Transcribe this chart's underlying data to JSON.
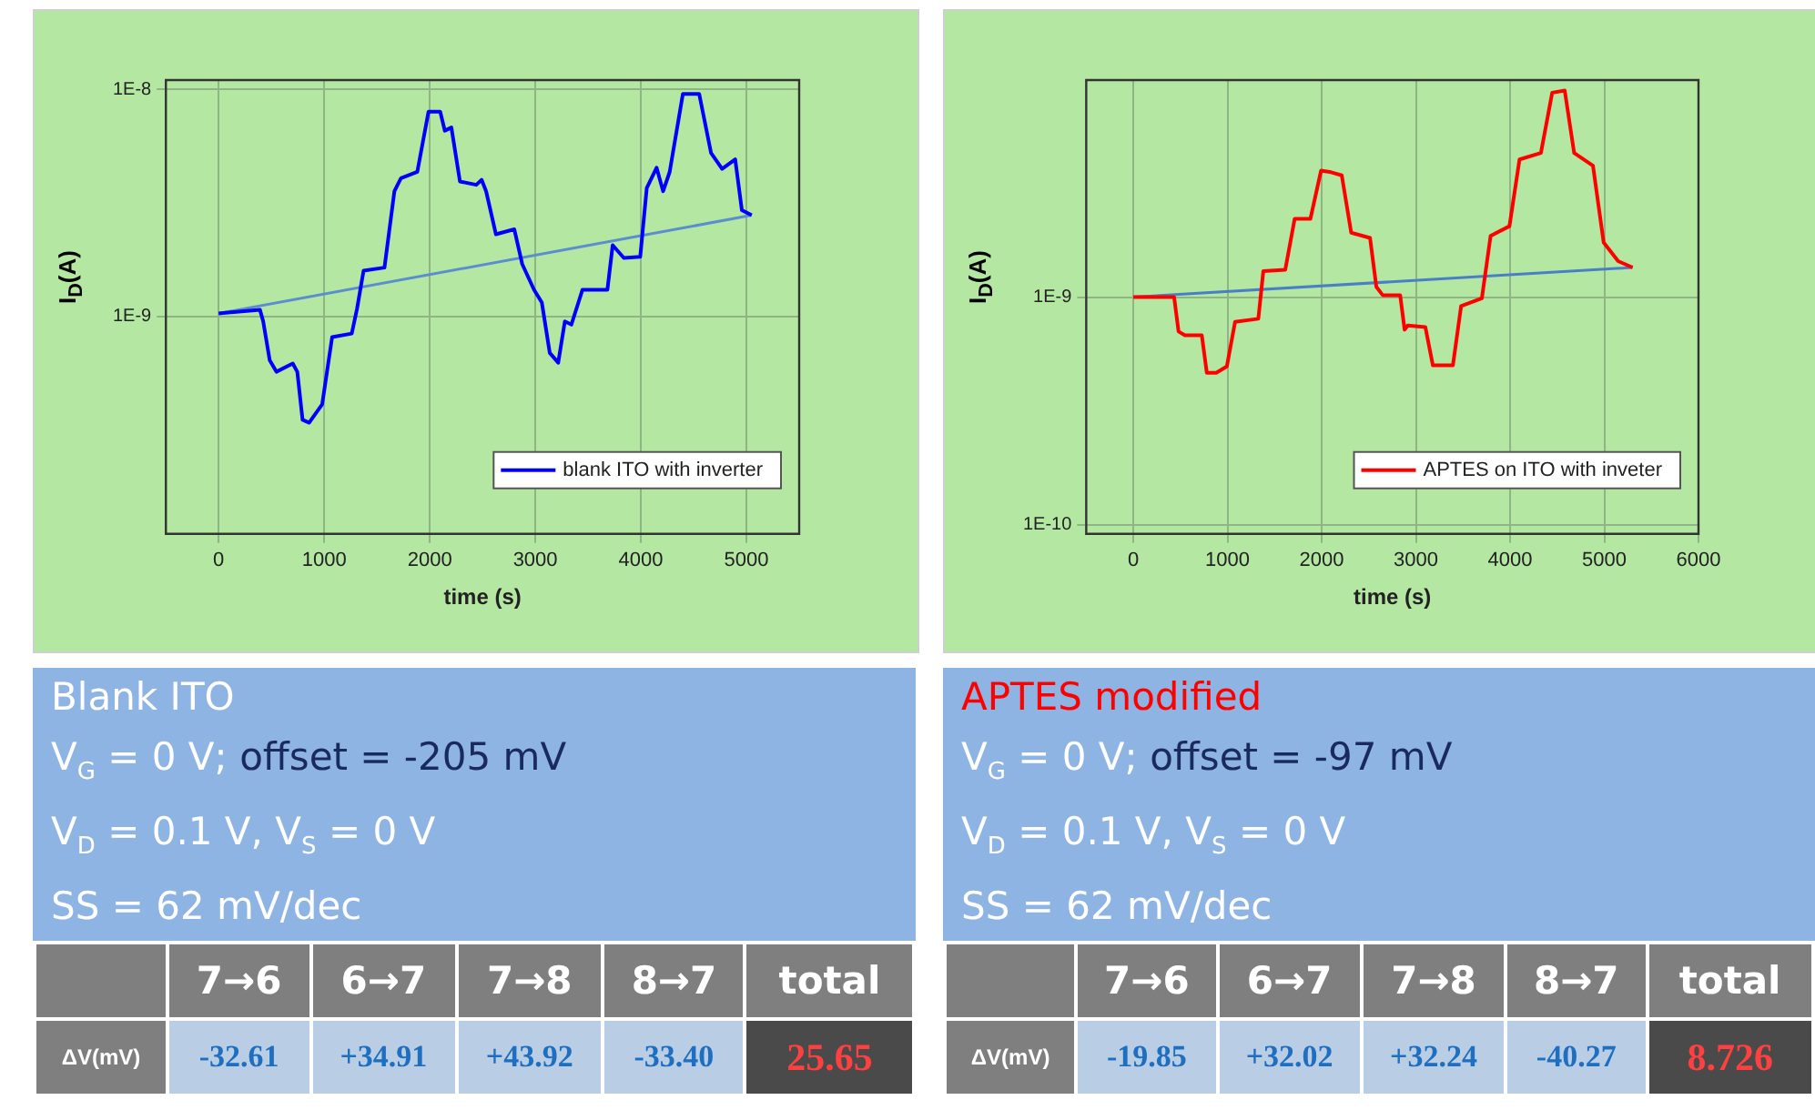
{
  "chart_data": [
    {
      "type": "line",
      "xlabel": "time (s)",
      "ylabel": "I$_{D}$(A)",
      "xlim": [
        -500,
        5500
      ],
      "xticks": [
        0,
        1000,
        2000,
        3000,
        4000,
        5000
      ],
      "ylim": [
        1.1e-10,
        1.1e-08
      ],
      "yticks": [
        {
          "value": 1e-09,
          "label": "1E-9"
        },
        {
          "value": 1e-08,
          "label": "1E-8"
        }
      ],
      "log": "y",
      "grid": true,
      "legend": "bottom right",
      "marker": "none",
      "line_style": "solid",
      "series": [
        {
          "name": "blank ITO with inverter",
          "color": "#0000ff",
          "x": [
            0,
            391,
            422,
            484,
            547,
            702,
            745,
            795,
            857,
            981,
            1075,
            1261,
            1311,
            1373,
            1571,
            1665,
            1727,
            1882,
            1988,
            2099,
            2143,
            2205,
            2286,
            2441,
            2491,
            2534,
            2627,
            2801,
            2876,
            2988,
            3062,
            3137,
            3217,
            3280,
            3342,
            3447,
            3683,
            3733,
            3839,
            3994,
            4056,
            4149,
            4211,
            4273,
            4398,
            4553,
            4665,
            4770,
            4894,
            4957,
            5050
          ],
          "values": [
            1.03e-09,
            1.07e-09,
            9.5e-10,
            6.4e-10,
            5.7e-10,
            6.2e-10,
            5.7e-10,
            3.5e-10,
            3.4e-10,
            4.1e-10,
            8.1e-10,
            8.4e-10,
            1.08e-09,
            1.59e-09,
            1.64e-09,
            3.56e-09,
            4.06e-09,
            4.33e-09,
            7.98e-09,
            7.98e-09,
            6.58e-09,
            6.8e-09,
            3.93e-09,
            3.8e-09,
            4e-09,
            3.56e-09,
            2.3e-09,
            2.42e-09,
            1.7e-09,
            1.31e-09,
            1.15e-09,
            6.9e-10,
            6.25e-10,
            9.5e-10,
            9.2e-10,
            1.31e-09,
            1.31e-09,
            2.06e-09,
            1.81e-09,
            1.83e-09,
            3.68e-09,
            4.52e-09,
            3.56e-09,
            4.33e-09,
            9.55e-09,
            9.55e-09,
            5.25e-09,
            4.47e-09,
            4.92e-09,
            2.94e-09,
            2.79e-09
          ]
        },
        {
          "type": "line",
          "color": "#5b8ed0",
          "x": [
            0,
            5050
          ],
          "values": [
            1.03e-09,
            2.79e-09
          ]
        }
      ]
    },
    {
      "type": "line",
      "xlabel": "time (s)",
      "ylabel": "I$_{D}$(A)",
      "xlim": [
        -500,
        6000
      ],
      "xticks": [
        0,
        1000,
        2000,
        3000,
        4000,
        5000,
        6000
      ],
      "ylim": [
        9.1e-11,
        9e-09
      ],
      "yticks": [
        {
          "value": 1e-10,
          "label": "1E-10"
        },
        {
          "value": 1e-09,
          "label": "1E-9"
        }
      ],
      "log": "y",
      "grid": true,
      "legend": "bottom right",
      "marker": "none",
      "line_style": "solid",
      "series": [
        {
          "name": "APTES on ITO with inveter",
          "color": "#ff0000",
          "x": [
            0,
            433,
            480,
            547,
            727,
            780,
            880,
            993,
            1080,
            1327,
            1380,
            1613,
            1713,
            1880,
            1993,
            2100,
            2213,
            2313,
            2513,
            2580,
            2647,
            2833,
            2880,
            2913,
            3100,
            3180,
            3393,
            3480,
            3700,
            3793,
            3993,
            4100,
            4327,
            4447,
            4580,
            4680,
            4880,
            4993,
            5147,
            5300
          ],
          "values": [
            1e-09,
            1e-09,
            7.06e-10,
            6.8e-10,
            6.8e-10,
            4.65e-10,
            4.65e-10,
            4.96e-10,
            7.78e-10,
            8.03e-10,
            1.3e-09,
            1.32e-09,
            2.21e-09,
            2.21e-09,
            3.6e-09,
            3.54e-09,
            3.43e-09,
            1.92e-09,
            1.82e-09,
            1.11e-09,
            1.02e-09,
            1.02e-09,
            7.19e-10,
            7.5e-10,
            7.39e-10,
            5.01e-10,
            5.01e-10,
            9.14e-10,
            9.87e-10,
            1.86e-09,
            2.05e-09,
            4.03e-09,
            4.3e-09,
            7.92e-09,
            8.1e-09,
            4.3e-09,
            3.78e-09,
            1.74e-09,
            1.44e-09,
            1.35e-09
          ]
        },
        {
          "type": "line",
          "color": "#4a7fc8",
          "x": [
            0,
            5300
          ],
          "values": [
            1e-09,
            1.35e-09
          ]
        }
      ]
    },
    {
      "type": "other",
      "title": "Blank ITO",
      "annotations": [
        "V$_{G}$ = 0 V; ",
        "offset = -205 mV",
        "V$_{D}$ = 0.1 V, V$_{S}$ = 0 V",
        "SS = 62 mV/dec"
      ],
      "categories": [
        "7→6",
        "6→7",
        "7→8",
        "8→7",
        "total"
      ],
      "y_categories": [
        "ΔV(mV)"
      ],
      "cell_labels": [
        [
          "-32.61",
          "+34.91",
          "+43.92",
          "-33.40",
          "25.65"
        ]
      ]
    },
    {
      "type": "other",
      "title": "APTES modified",
      "annotations": [
        "V$_{G}$ = 0 V; ",
        "offset = -97 mV",
        "V$_{D}$ = 0.1 V, V$_{S}$ = 0 V",
        "SS = 62 mV/dec"
      ],
      "categories": [
        "7→6",
        "6→7",
        "7→8",
        "8→7",
        "total"
      ],
      "y_categories": [
        "ΔV(mV)"
      ],
      "cell_labels": [
        [
          "-19.85",
          "+32.02",
          "+32.24",
          "-40.27",
          "8.726"
        ]
      ]
    }
  ]
}
